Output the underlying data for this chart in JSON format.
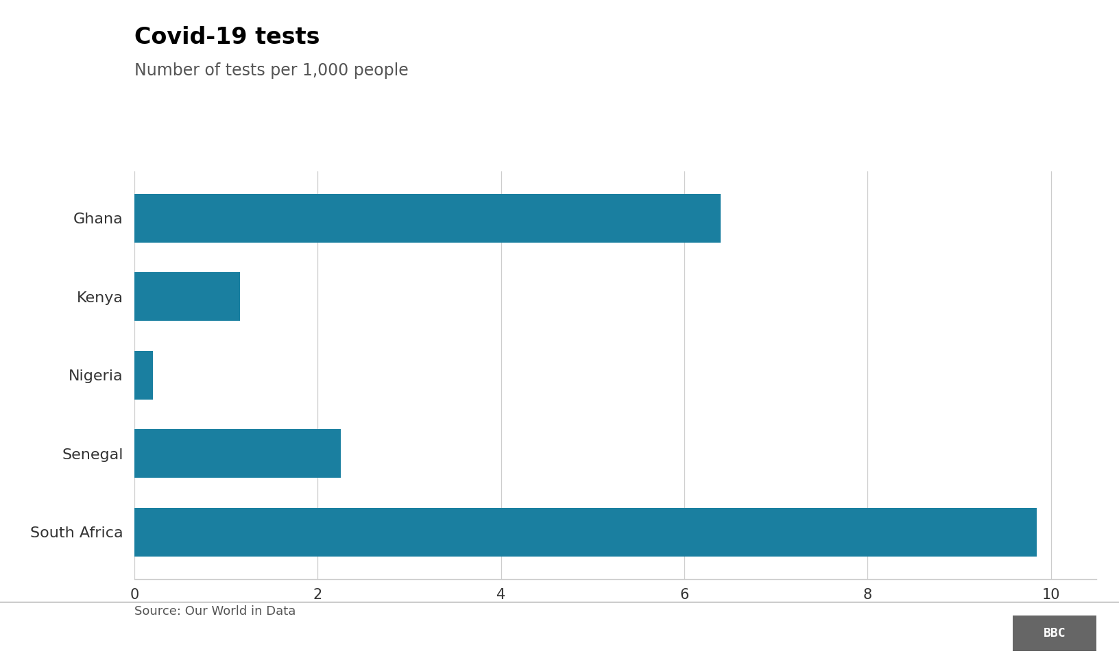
{
  "title": "Covid-19 tests",
  "subtitle": "Number of tests per 1,000 people",
  "source": "Source: Our World in Data",
  "categories": [
    "Ghana",
    "Kenya",
    "Nigeria",
    "Senegal",
    "South Africa"
  ],
  "values": [
    6.4,
    1.15,
    0.2,
    2.25,
    9.85
  ],
  "bar_color": "#1a7fa0",
  "background_color": "#ffffff",
  "xlim": [
    0,
    10.5
  ],
  "xticks": [
    0,
    2,
    4,
    6,
    8,
    10
  ],
  "grid_color": "#cccccc",
  "title_fontsize": 24,
  "subtitle_fontsize": 17,
  "label_fontsize": 16,
  "tick_fontsize": 15,
  "source_fontsize": 13,
  "bar_height": 0.62,
  "title_color": "#000000",
  "subtitle_color": "#555555",
  "source_color": "#555555",
  "tick_color": "#333333",
  "bbc_box_color": "#666666",
  "bbc_text_color": "#ffffff"
}
